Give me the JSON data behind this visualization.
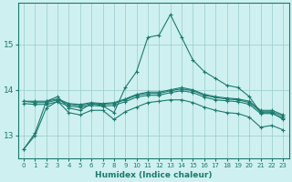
{
  "xlabel": "Humidex (Indice chaleur)",
  "bg_color": "#cff0f0",
  "grid_color": "#99cccc",
  "line_color": "#1a7a6e",
  "ylim": [
    12.5,
    15.9
  ],
  "xlim": [
    -0.5,
    23.5
  ],
  "yticks": [
    13,
    14,
    15
  ],
  "xticks": [
    0,
    1,
    2,
    3,
    4,
    5,
    6,
    7,
    8,
    9,
    10,
    11,
    12,
    13,
    14,
    15,
    16,
    17,
    18,
    19,
    20,
    21,
    22,
    23
  ],
  "lines": [
    [
      12.7,
      13.05,
      13.75,
      13.85,
      13.6,
      13.55,
      13.7,
      13.65,
      13.5,
      14.05,
      14.4,
      15.15,
      15.2,
      15.65,
      15.15,
      14.65,
      14.4,
      14.25,
      14.1,
      14.05,
      13.85,
      13.5,
      13.5,
      13.35
    ],
    [
      13.75,
      13.75,
      13.75,
      13.8,
      13.7,
      13.68,
      13.72,
      13.7,
      13.72,
      13.8,
      13.9,
      13.95,
      13.95,
      14.0,
      14.05,
      14.0,
      13.9,
      13.85,
      13.82,
      13.8,
      13.75,
      13.55,
      13.55,
      13.45
    ],
    [
      13.75,
      13.72,
      13.72,
      13.78,
      13.68,
      13.65,
      13.7,
      13.68,
      13.7,
      13.78,
      13.88,
      13.92,
      13.92,
      13.98,
      14.02,
      13.98,
      13.88,
      13.83,
      13.8,
      13.78,
      13.72,
      13.52,
      13.52,
      13.42
    ],
    [
      13.7,
      13.68,
      13.68,
      13.74,
      13.64,
      13.62,
      13.66,
      13.64,
      13.66,
      13.74,
      13.84,
      13.88,
      13.88,
      13.94,
      13.98,
      13.94,
      13.84,
      13.78,
      13.76,
      13.74,
      13.68,
      13.48,
      13.48,
      13.38
    ],
    [
      12.7,
      13.0,
      13.6,
      13.75,
      13.5,
      13.45,
      13.55,
      13.55,
      13.35,
      13.52,
      13.62,
      13.72,
      13.75,
      13.78,
      13.78,
      13.72,
      13.62,
      13.55,
      13.5,
      13.48,
      13.4,
      13.18,
      13.22,
      13.12
    ]
  ]
}
